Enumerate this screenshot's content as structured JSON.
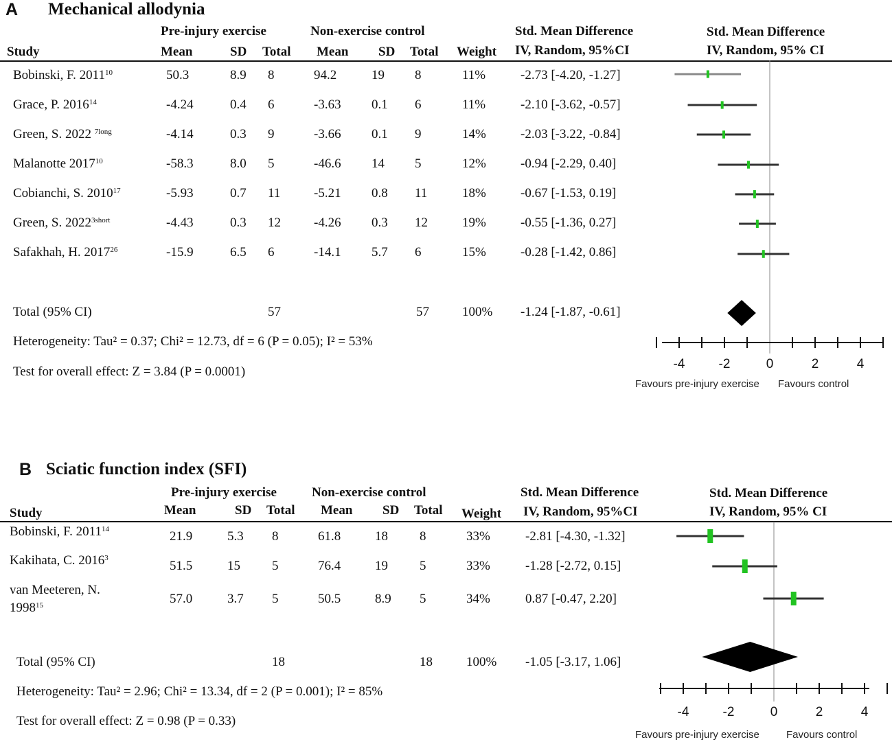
{
  "panels": [
    {
      "letter": "A",
      "title": "Mechanical allodynia",
      "headers": {
        "group1": "Pre-injury exercise",
        "group2": "Non-exercise control",
        "smd_col_1": "Std. Mean Difference",
        "smd_col_2": "IV, Random, 95%CI",
        "plot_1": "Std. Mean Difference",
        "plot_2": "IV, Random, 95% CI",
        "study": "Study",
        "mean1": "Mean",
        "sd1": "SD",
        "total1": "Total",
        "mean2": "Mean",
        "sd2": "SD",
        "total2": "Total",
        "weight": "Weight"
      },
      "studies": [
        {
          "name": "Bobinski, F. 2011",
          "ref": "10",
          "mean1": "50.3",
          "sd1": "8.9",
          "n1": "8",
          "mean2": "94.2",
          "sd2": "19",
          "n2": "8",
          "weight": "11%",
          "ci_text": "-2.73 [-4.20, -1.27]"
        },
        {
          "name": "Grace, P. 2016",
          "ref": "14",
          "mean1": "-4.24",
          "sd1": "0.4",
          "n1": "6",
          "mean2": "-3.63",
          "sd2": "0.1",
          "n2": "6",
          "weight": "11%",
          "ci_text": "-2.10 [-3.62, -0.57]"
        },
        {
          "name": "Green, S. 2022 ",
          "ref": "7long",
          "mean1": "-4.14",
          "sd1": "0.3",
          "n1": "9",
          "mean2": "-3.66",
          "sd2": "0.1",
          "n2": "9",
          "weight": "14%",
          "ci_text": "-2.03 [-3.22, -0.84]"
        },
        {
          "name": "Malanotte 2017",
          "ref": "10",
          "mean1": "-58.3",
          "sd1": "8.0",
          "n1": "5",
          "mean2": "-46.6",
          "sd2": "14",
          "n2": "5",
          "weight": "12%",
          "ci_text": "-0.94 [-2.29, 0.40]"
        },
        {
          "name": "Cobianchi, S. 2010",
          "ref": "17",
          "mean1": "-5.93",
          "sd1": "0.7",
          "n1": "11",
          "mean2": "-5.21",
          "sd2": "0.8",
          "n2": "11",
          "weight": "18%",
          "ci_text": "-0.67 [-1.53, 0.19]"
        },
        {
          "name": "Green, S. 2022",
          "ref": "3short",
          "mean1": "-4.43",
          "sd1": "0.3",
          "n1": "12",
          "mean2": "-4.26",
          "sd2": "0.3",
          "n2": "12",
          "weight": "19%",
          "ci_text": "-0.55 [-1.36, 0.27]"
        },
        {
          "name": "Safakhah, H. 2017",
          "ref": "26",
          "mean1": "-15.9",
          "sd1": "6.5",
          "n1": "6",
          "mean2": "-14.1",
          "sd2": "5.7",
          "n2": "6",
          "weight": "15%",
          "ci_text": "-0.28 [-1.42, 0.86]"
        }
      ],
      "total": {
        "label": "Total (95% CI)",
        "n1": "57",
        "n2": "57",
        "weight": "100%",
        "ci_text": "-1.24 [-1.87, -0.61]"
      },
      "heterogeneity": "Heterogeneity: Tau² = 0.37; Chi² = 12.73, df = 6 (P = 0.05); I² = 53%",
      "overall_effect": "Test for overall effect: Z = 3.84 (P = 0.0001)",
      "favours_left": "Favours pre-injury exercise",
      "favours_right": "Favours control"
    },
    {
      "letter": "B",
      "title": "Sciatic function index (SFI)",
      "headers": {
        "group1": "Pre-injury exercise",
        "group2": "Non-exercise control",
        "smd_col_1": "Std. Mean Difference",
        "smd_col_2": "IV, Random, 95%CI",
        "plot_1": "Std. Mean Difference",
        "plot_2": "IV, Random, 95% CI",
        "study": "Study",
        "mean1": "Mean",
        "sd1": "SD",
        "total1": "Total",
        "mean2": "Mean",
        "sd2": "SD",
        "total2": "Total",
        "weight": "Weight"
      },
      "studies": [
        {
          "name": "Bobinski, F. 2011",
          "ref": "14",
          "mean1": "21.9",
          "sd1": "5.3",
          "n1": "8",
          "mean2": "61.8",
          "sd2": "18",
          "n2": "8",
          "weight": "33%",
          "ci_text": "-2.81 [-4.30, -1.32]"
        },
        {
          "name": "Kakihata, C. 2016",
          "ref": "3",
          "mean1": "51.5",
          "sd1": "15",
          "n1": "5",
          "mean2": "76.4",
          "sd2": "19",
          "n2": "5",
          "weight": "33%",
          "ci_text": "-1.28 [-2.72, 0.15]"
        },
        {
          "name": "van Meeteren, N.",
          "name_line2": "1998",
          "ref": "15",
          "mean1": "57.0",
          "sd1": "3.7",
          "n1": "5",
          "mean2": "50.5",
          "sd2": "8.9",
          "n2": "5",
          "weight": "34%",
          "ci_text": "0.87 [-0.47, 2.20]"
        }
      ],
      "total": {
        "label": "Total (95% CI)",
        "n1": "18",
        "n2": "18",
        "weight": "100%",
        "ci_text": "-1.05 [-3.17, 1.06]"
      },
      "heterogeneity": "Heterogeneity: Tau² = 2.96; Chi² = 13.34, df = 2 (P = 0.001); I² = 85%",
      "overall_effect": "Test for overall effect: Z = 0.98 (P = 0.33)",
      "favours_left": "Favours pre-injury exercise",
      "favours_right": "Favours control"
    }
  ],
  "chart_data": [
    {
      "type": "forest",
      "title": "Mechanical allodynia",
      "xlim": [
        -5,
        5
      ],
      "ticks": [
        -4,
        -2,
        0,
        2,
        4
      ],
      "studies": [
        {
          "label": "Bobinski, F. 2011",
          "smd": -2.73,
          "lo": -4.2,
          "hi": -1.27,
          "weight": 11
        },
        {
          "label": "Grace, P. 2016",
          "smd": -2.1,
          "lo": -3.62,
          "hi": -0.57,
          "weight": 11
        },
        {
          "label": "Green, S. 2022 7long",
          "smd": -2.03,
          "lo": -3.22,
          "hi": -0.84,
          "weight": 14
        },
        {
          "label": "Malanotte 2017",
          "smd": -0.94,
          "lo": -2.29,
          "hi": 0.4,
          "weight": 12
        },
        {
          "label": "Cobianchi, S. 2010",
          "smd": -0.67,
          "lo": -1.53,
          "hi": 0.19,
          "weight": 18
        },
        {
          "label": "Green, S. 2022 3short",
          "smd": -0.55,
          "lo": -1.36,
          "hi": 0.27,
          "weight": 19
        },
        {
          "label": "Safakhah, H. 2017",
          "smd": -0.28,
          "lo": -1.42,
          "hi": 0.86,
          "weight": 15
        }
      ],
      "pooled": {
        "smd": -1.24,
        "lo": -1.87,
        "hi": -0.61
      },
      "xlabel_left": "Favours pre-injury exercise",
      "xlabel_right": "Favours control",
      "marker_color": "#22c322"
    },
    {
      "type": "forest",
      "title": "Sciatic function index (SFI)",
      "xlim": [
        -5,
        5
      ],
      "ticks": [
        -4,
        -2,
        0,
        2,
        4
      ],
      "studies": [
        {
          "label": "Bobinski, F. 2011",
          "smd": -2.81,
          "lo": -4.3,
          "hi": -1.32,
          "weight": 33
        },
        {
          "label": "Kakihata, C. 2016",
          "smd": -1.28,
          "lo": -2.72,
          "hi": 0.15,
          "weight": 33
        },
        {
          "label": "van Meeteren, N. 1998",
          "smd": 0.87,
          "lo": -0.47,
          "hi": 2.2,
          "weight": 34
        }
      ],
      "pooled": {
        "smd": -1.05,
        "lo": -3.17,
        "hi": 1.06
      },
      "xlabel_left": "Favours pre-injury exercise",
      "xlabel_right": "Favours control",
      "marker_color": "#22c322"
    }
  ]
}
